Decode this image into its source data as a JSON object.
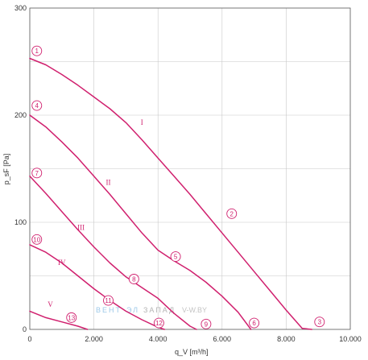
{
  "chart_data": {
    "type": "line",
    "title": "",
    "xlabel": "q_V [m³/h]",
    "ylabel": "p_sF [Pa]",
    "xlim": [
      0,
      10000
    ],
    "ylim": [
      0,
      300
    ],
    "x_ticks": [
      "0",
      "2.000",
      "4.000",
      "6.000",
      "8.000",
      "10.000"
    ],
    "y_ticks": [
      "0",
      "100",
      "200",
      "300"
    ],
    "grid": true,
    "line_color": "#d0206e",
    "series": [
      {
        "name": "I",
        "points": [
          [
            0,
            253
          ],
          [
            500,
            247
          ],
          [
            1000,
            238
          ],
          [
            1500,
            228
          ],
          [
            2000,
            217
          ],
          [
            2500,
            206
          ],
          [
            3000,
            193
          ],
          [
            3500,
            177
          ],
          [
            4000,
            160
          ],
          [
            4500,
            143
          ],
          [
            5000,
            126
          ],
          [
            5500,
            108
          ],
          [
            6000,
            90
          ],
          [
            6500,
            72
          ],
          [
            7000,
            54
          ],
          [
            7500,
            36
          ],
          [
            8000,
            18
          ],
          [
            8500,
            1
          ],
          [
            8800,
            0
          ]
        ]
      },
      {
        "name": "II",
        "points": [
          [
            0,
            200
          ],
          [
            500,
            189
          ],
          [
            1000,
            175
          ],
          [
            1500,
            160
          ],
          [
            2000,
            143
          ],
          [
            2500,
            126
          ],
          [
            3000,
            108
          ],
          [
            3500,
            90
          ],
          [
            4000,
            74
          ],
          [
            4500,
            64
          ],
          [
            5000,
            55
          ],
          [
            5500,
            44
          ],
          [
            6000,
            31
          ],
          [
            6500,
            16
          ],
          [
            6900,
            0
          ]
        ]
      },
      {
        "name": "III",
        "points": [
          [
            0,
            143
          ],
          [
            500,
            127
          ],
          [
            1000,
            110
          ],
          [
            1500,
            93
          ],
          [
            2000,
            77
          ],
          [
            2500,
            62
          ],
          [
            3000,
            49
          ],
          [
            3500,
            39
          ],
          [
            4000,
            29
          ],
          [
            4500,
            15
          ],
          [
            5000,
            3
          ],
          [
            5200,
            0
          ]
        ]
      },
      {
        "name": "IV",
        "points": [
          [
            0,
            79
          ],
          [
            500,
            72
          ],
          [
            1000,
            62
          ],
          [
            1500,
            50
          ],
          [
            2000,
            38
          ],
          [
            2500,
            27
          ],
          [
            3000,
            17
          ],
          [
            3500,
            9
          ],
          [
            4000,
            2
          ],
          [
            4200,
            0
          ]
        ]
      },
      {
        "name": "V",
        "points": [
          [
            0,
            17
          ],
          [
            500,
            11
          ],
          [
            1000,
            7
          ],
          [
            1500,
            3
          ],
          [
            1800,
            0
          ]
        ]
      }
    ],
    "annotations": {
      "markers": [
        {
          "label": "1",
          "x": 220,
          "y": 260
        },
        {
          "label": "4",
          "x": 220,
          "y": 209
        },
        {
          "label": "7",
          "x": 220,
          "y": 146
        },
        {
          "label": "10",
          "x": 220,
          "y": 84
        },
        {
          "label": "13",
          "x": 1300,
          "y": 11
        },
        {
          "label": "2",
          "x": 6300,
          "y": 108
        },
        {
          "label": "5",
          "x": 4550,
          "y": 68
        },
        {
          "label": "8",
          "x": 3250,
          "y": 47
        },
        {
          "label": "11",
          "x": 2450,
          "y": 27
        },
        {
          "label": "12",
          "x": 4030,
          "y": 6
        },
        {
          "label": "9",
          "x": 5500,
          "y": 5
        },
        {
          "label": "6",
          "x": 7000,
          "y": 6
        },
        {
          "label": "3",
          "x": 9040,
          "y": 7
        }
      ],
      "roman_labels": [
        {
          "label": "I",
          "x": 3500,
          "y": 191
        },
        {
          "label": "II",
          "x": 2450,
          "y": 135
        },
        {
          "label": "III",
          "x": 1600,
          "y": 93
        },
        {
          "label": "IV",
          "x": 1000,
          "y": 60
        },
        {
          "label": "V",
          "x": 640,
          "y": 21
        }
      ]
    }
  },
  "watermark": {
    "part1": "ВЕНТ",
    "part2": "ЭЛ",
    "part3": "ЗАПАД",
    "part4": "V-W.BY"
  }
}
